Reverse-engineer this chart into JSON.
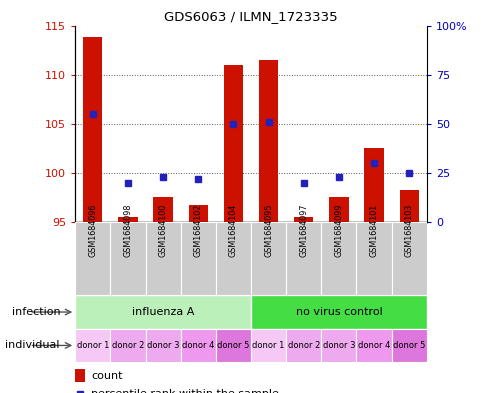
{
  "title": "GDS6063 / ILMN_1723335",
  "samples": [
    "GSM1684096",
    "GSM1684098",
    "GSM1684100",
    "GSM1684102",
    "GSM1684104",
    "GSM1684095",
    "GSM1684097",
    "GSM1684099",
    "GSM1684101",
    "GSM1684103"
  ],
  "counts": [
    113.8,
    95.5,
    97.5,
    96.7,
    111.0,
    111.5,
    95.5,
    97.5,
    102.5,
    98.3
  ],
  "percentiles": [
    55,
    20,
    23,
    22,
    50,
    51,
    20,
    23,
    30,
    25
  ],
  "ylim_left": [
    95,
    115
  ],
  "ylim_right": [
    0,
    100
  ],
  "yticks_left": [
    95,
    100,
    105,
    110,
    115
  ],
  "yticks_right": [
    0,
    25,
    50,
    75,
    100
  ],
  "ytick_labels_right": [
    "0",
    "25",
    "50",
    "75",
    "100%"
  ],
  "infection_groups": [
    {
      "label": "influenza A",
      "start": 0,
      "end": 5,
      "color": "#bbf0bb"
    },
    {
      "label": "no virus control",
      "start": 5,
      "end": 10,
      "color": "#44dd44"
    }
  ],
  "individual_colors": [
    "#f5c8f5",
    "#eeaaee",
    "#eeaaee",
    "#ee99ee",
    "#dd77dd",
    "#f5c8f5",
    "#eeaaee",
    "#eeaaee",
    "#ee99ee",
    "#dd77dd"
  ],
  "individual_labels": [
    "donor 1",
    "donor 2",
    "donor 3",
    "donor 4",
    "donor 5",
    "donor 1",
    "donor 2",
    "donor 3",
    "donor 4",
    "donor 5"
  ],
  "bar_color": "#cc1100",
  "dot_color": "#2222bb",
  "grid_color": "#555555",
  "sample_bg_color": "#cccccc",
  "legend_count_color": "#cc1100",
  "legend_dot_color": "#2222bb"
}
